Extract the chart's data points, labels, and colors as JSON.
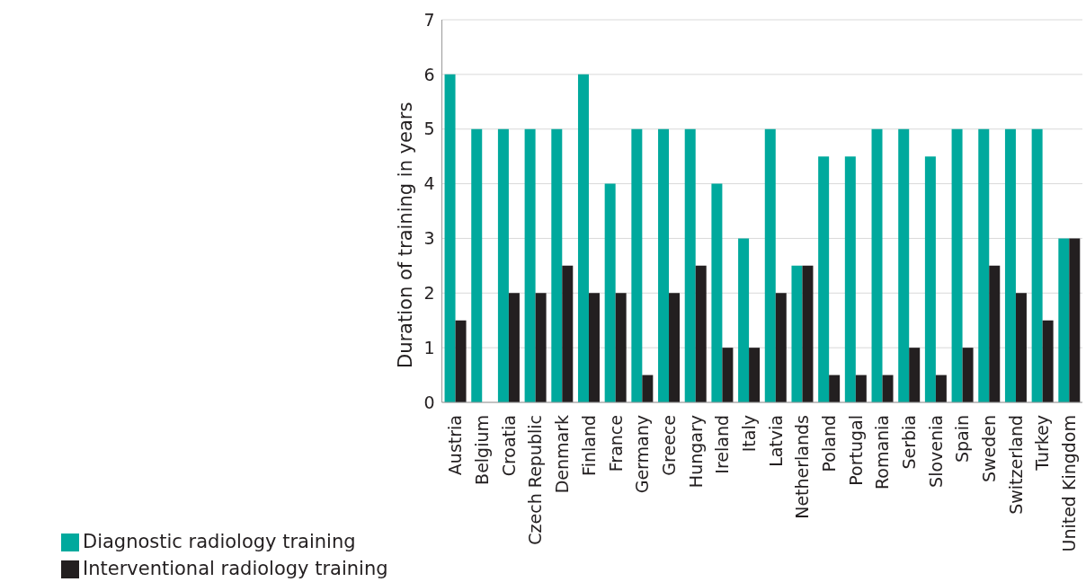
{
  "chart_data": {
    "type": "bar",
    "ylabel": "Duration of training in years",
    "categories": [
      "Austria",
      "Belgium",
      "Croatia",
      "Czech Republic",
      "Denmark",
      "Finland",
      "France",
      "Germany",
      "Greece",
      "Hungary",
      "Ireland",
      "Italy",
      "Latvia",
      "Netherlands",
      "Poland",
      "Portugal",
      "Romania",
      "Serbia",
      "Slovenia",
      "Spain",
      "Sweden",
      "Switzerland",
      "Turkey",
      "United Kingdom"
    ],
    "series": [
      {
        "name": "Diagnostic radiology training",
        "color": "#00a99d",
        "values": [
          6,
          5,
          5,
          5,
          5,
          6,
          4,
          5,
          5,
          5,
          4,
          3,
          5,
          2.5,
          4.5,
          4.5,
          5,
          5,
          4.5,
          5,
          5,
          5,
          5,
          3
        ]
      },
      {
        "name": "Interventional radiology training",
        "color": "#231f20",
        "values": [
          1.5,
          null,
          2,
          2,
          2.5,
          2,
          2,
          0.5,
          2,
          2.5,
          1,
          1,
          2,
          2.5,
          0.5,
          0.5,
          0.5,
          1,
          0.5,
          1,
          2.5,
          2,
          1.5,
          3
        ]
      }
    ],
    "ylim": [
      0,
      7
    ],
    "yticks": [
      0,
      1,
      2,
      3,
      4,
      5,
      6,
      7
    ],
    "grid": "y",
    "legend": "bottom left"
  }
}
